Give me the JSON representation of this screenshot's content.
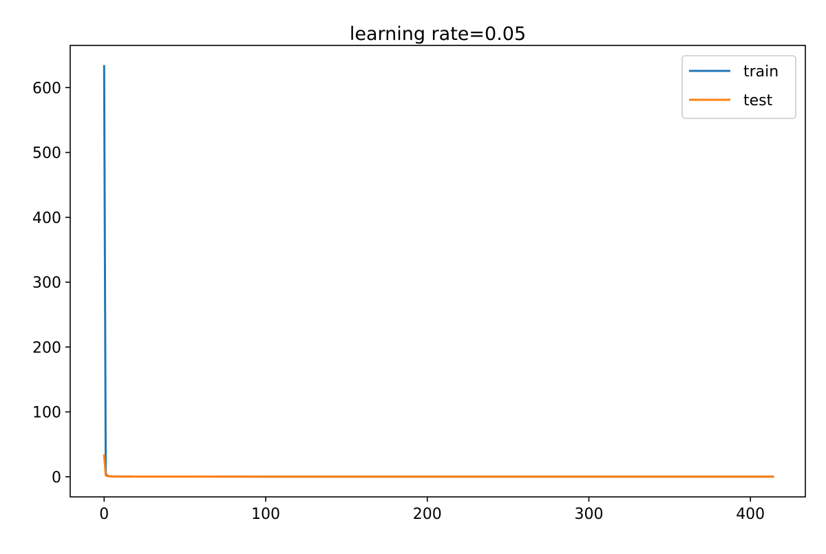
{
  "chart_data": {
    "type": "line",
    "title": "learning rate=0.05",
    "xlabel": "",
    "ylabel": "",
    "xlim": [
      -21,
      434
    ],
    "ylim": [
      -31,
      665
    ],
    "xticks": [
      0,
      100,
      200,
      300,
      400
    ],
    "yticks": [
      0,
      100,
      200,
      300,
      400,
      500,
      600
    ],
    "grid": false,
    "legend_position": "top-right",
    "series": [
      {
        "name": "train",
        "color": "#1f77b4",
        "x": [
          0,
          1,
          2,
          3,
          5,
          10,
          20,
          50,
          100,
          150,
          200,
          250,
          300,
          350,
          400,
          414
        ],
        "y": [
          633,
          5,
          1.5,
          0.9,
          0.6,
          0.4,
          0.3,
          0.25,
          0.2,
          0.2,
          0.2,
          0.2,
          0.2,
          0.2,
          0.2,
          0.2
        ]
      },
      {
        "name": "test",
        "color": "#ff7f0e",
        "x": [
          0,
          1,
          2,
          3,
          5,
          10,
          20,
          50,
          100,
          150,
          200,
          250,
          300,
          350,
          400,
          414
        ],
        "y": [
          33,
          2,
          1,
          0.7,
          0.5,
          0.4,
          0.3,
          0.25,
          0.2,
          0.2,
          0.2,
          0.2,
          0.2,
          0.2,
          0.2,
          0.2
        ]
      }
    ]
  }
}
